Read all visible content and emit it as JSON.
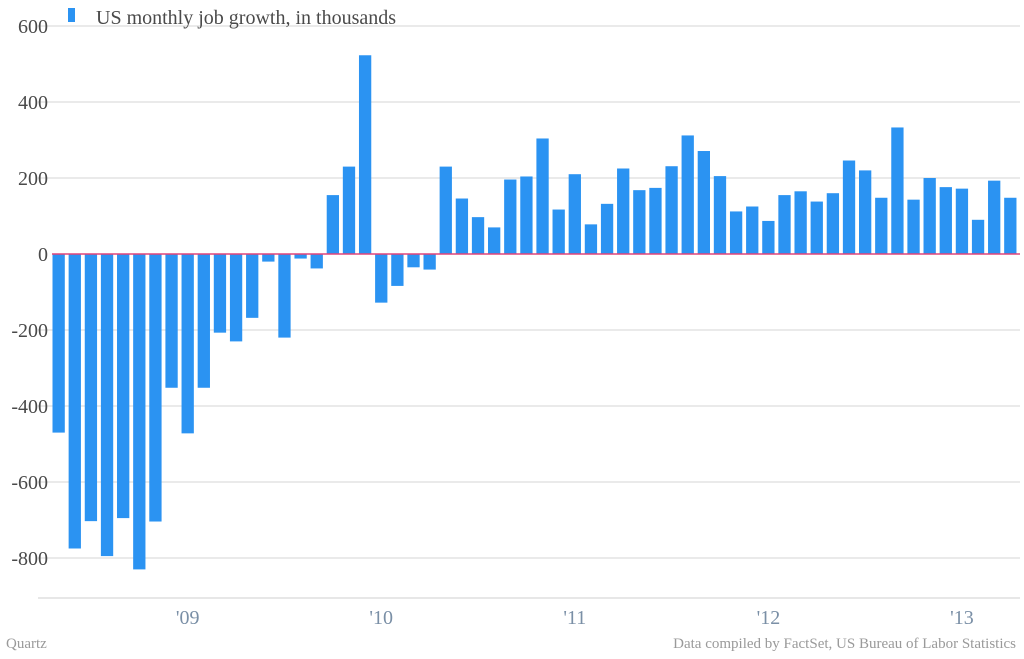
{
  "chart_data": {
    "type": "bar",
    "title": "",
    "legend": "US monthly job growth, in thousands",
    "series": [
      {
        "name": "US monthly job growth, in thousands",
        "color": "#2b93f2",
        "values": [
          -470,
          -775,
          -703,
          -795,
          -695,
          -830,
          -704,
          -352,
          -472,
          -352,
          -207,
          -230,
          -168,
          -20,
          -220,
          -12,
          -38,
          155,
          230,
          523,
          -128,
          -84,
          -35,
          -41,
          230,
          146,
          97,
          70,
          196,
          204,
          304,
          117,
          210,
          78,
          132,
          225,
          168,
          174,
          231,
          312,
          271,
          205,
          112,
          125,
          87,
          155,
          165,
          138,
          160,
          246,
          220,
          148,
          333,
          143,
          200,
          176,
          172,
          90,
          193,
          148
        ]
      }
    ],
    "x_tick_labels": [
      "'09",
      "'10",
      "'11",
      "'12",
      "'13"
    ],
    "y_tick_labels": [
      "600",
      "400",
      "200",
      "0",
      "-200",
      "-400",
      "-600",
      "-800"
    ],
    "ylim": [
      -900,
      600
    ],
    "grid": true,
    "zero_line_color": "#e0457b",
    "xlabel": "",
    "ylabel": ""
  },
  "footer": {
    "source_left": "Quartz",
    "source_right": "Data compiled by FactSet, US Bureau of Labor Statistics"
  }
}
